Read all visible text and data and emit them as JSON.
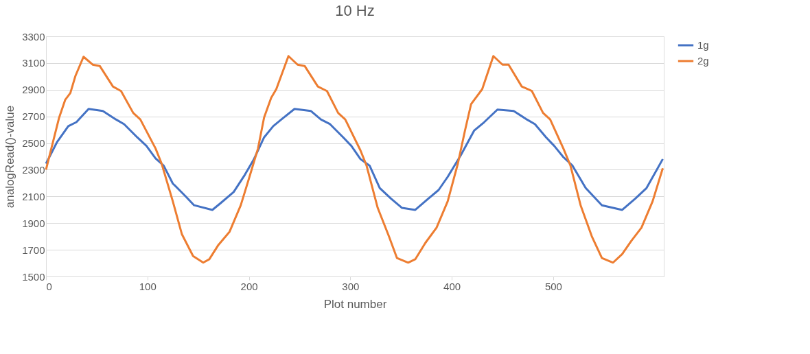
{
  "chart_data": {
    "type": "line",
    "title": "10 Hz",
    "xlabel": "Plot number",
    "ylabel": "analogRead()-value",
    "xlim": [
      0,
      609
    ],
    "xticks": [
      0,
      100,
      200,
      300,
      400,
      500
    ],
    "ylim": [
      1500,
      3300
    ],
    "yticks": [
      1500,
      1700,
      1900,
      2100,
      2300,
      2500,
      2700,
      2900,
      3100,
      3300
    ],
    "grid": "y",
    "legend": "right",
    "marker": "none",
    "line_style": "solid",
    "series": [
      {
        "name": "1g",
        "color": "#4472c4",
        "x": [
          0,
          11,
          22,
          30,
          42,
          56,
          69,
          77,
          90,
          99,
          108,
          116,
          125,
          138,
          146,
          164,
          172,
          185,
          196,
          205,
          215,
          224,
          232,
          245,
          261,
          271,
          280,
          293,
          301,
          310,
          319,
          329,
          340,
          351,
          364,
          377,
          387,
          396,
          409,
          422,
          432,
          445,
          461,
          474,
          482,
          493,
          501,
          510,
          519,
          532,
          548,
          568,
          581,
          592,
          608
        ],
        "values": [
          2346,
          2509,
          2627,
          2657,
          2756,
          2741,
          2677,
          2642,
          2543,
          2479,
          2385,
          2331,
          2197,
          2098,
          2034,
          1999,
          2049,
          2133,
          2262,
          2380,
          2543,
          2627,
          2677,
          2756,
          2741,
          2677,
          2642,
          2543,
          2479,
          2380,
          2331,
          2163,
          2084,
          2014,
          1999,
          2084,
          2148,
          2247,
          2410,
          2593,
          2657,
          2751,
          2741,
          2677,
          2642,
          2543,
          2479,
          2395,
          2331,
          2163,
          2034,
          1999,
          2084,
          2163,
          2380
        ]
      },
      {
        "name": "2g",
        "color": "#ed7d31",
        "x": [
          0,
          13,
          19,
          24,
          29,
          37,
          46,
          53,
          66,
          74,
          86,
          93,
          108,
          114,
          125,
          134,
          145,
          155,
          161,
          170,
          181,
          192,
          200,
          209,
          215,
          222,
          227,
          239,
          248,
          255,
          268,
          277,
          288,
          295,
          310,
          316,
          327,
          338,
          346,
          357,
          364,
          374,
          385,
          396,
          406,
          413,
          419,
          430,
          441,
          450,
          456,
          469,
          479,
          490,
          497,
          510,
          517,
          527,
          538,
          548,
          559,
          568,
          577,
          587,
          598,
          608
        ],
        "values": [
          2300,
          2692,
          2825,
          2875,
          3003,
          3147,
          3088,
          3078,
          2924,
          2890,
          2726,
          2677,
          2460,
          2346,
          2064,
          1816,
          1653,
          1604,
          1629,
          1737,
          1836,
          2034,
          2232,
          2460,
          2692,
          2840,
          2904,
          3152,
          3088,
          3078,
          2924,
          2890,
          2726,
          2677,
          2445,
          2331,
          2014,
          1802,
          1638,
          1604,
          1629,
          1752,
          1866,
          2064,
          2346,
          2593,
          2791,
          2904,
          3152,
          3088,
          3088,
          2924,
          2890,
          2726,
          2677,
          2460,
          2331,
          2034,
          1802,
          1638,
          1604,
          1668,
          1767,
          1866,
          2064,
          2311
        ]
      }
    ]
  }
}
